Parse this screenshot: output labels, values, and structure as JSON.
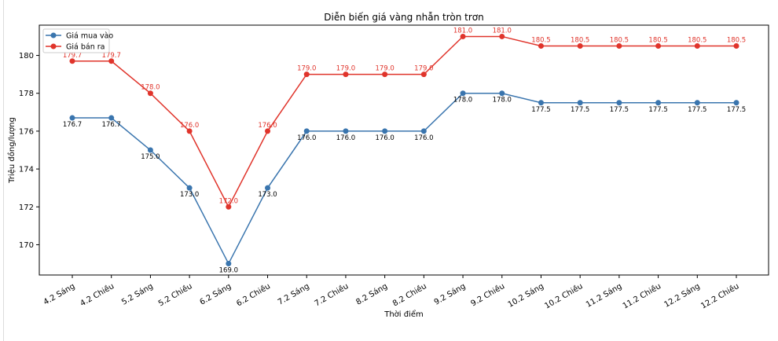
{
  "chart_data": {
    "type": "line",
    "title": "Diễn biến giá vàng nhẫn tròn trơn",
    "xlabel": "Thời điểm",
    "ylabel": "Triệu đồng/lượng",
    "categories": [
      "4.2 Sáng",
      "4.2 Chiều",
      "5.2 Sáng",
      "5.2 Chiều",
      "6.2 Sáng",
      "6.2 Chiều",
      "7.2 Sáng",
      "7.2 Chiều",
      "8.2 Sáng",
      "8.2 Chiều",
      "9.2 Sáng",
      "9.2 Chiều",
      "10.2 Sáng",
      "10.2 Chiều",
      "11.2 Sáng",
      "11.2 Chiều",
      "12.2 Sáng",
      "12.2 Chiều"
    ],
    "series": [
      {
        "name": "Giá mua vào",
        "color": "#3a75ae",
        "values": [
          176.7,
          176.7,
          175.0,
          173.0,
          169.0,
          173.0,
          176.0,
          176.0,
          176.0,
          176.0,
          178.0,
          178.0,
          177.5,
          177.5,
          177.5,
          177.5,
          177.5,
          177.5
        ]
      },
      {
        "name": "Giá bán ra",
        "color": "#e0342b",
        "values": [
          179.7,
          179.7,
          178.0,
          176.0,
          172.0,
          176.0,
          179.0,
          179.0,
          179.0,
          179.0,
          181.0,
          181.0,
          180.5,
          180.5,
          180.5,
          180.5,
          180.5,
          180.5
        ]
      }
    ],
    "ylim": [
      168.4,
      181.6
    ],
    "yticks": [
      170,
      172,
      174,
      176,
      178,
      180
    ],
    "grid": false,
    "legend": "top-left",
    "marker": "circle",
    "data_labels": true
  }
}
